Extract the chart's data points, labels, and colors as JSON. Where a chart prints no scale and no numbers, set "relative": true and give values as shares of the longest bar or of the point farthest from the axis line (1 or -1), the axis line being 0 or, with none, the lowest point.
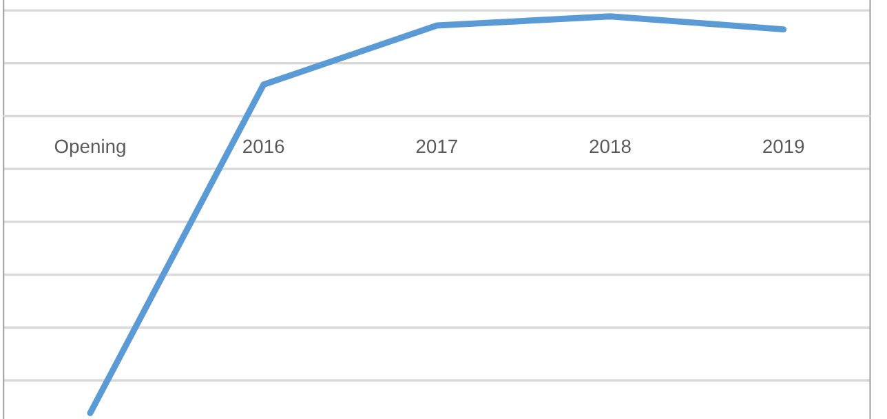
{
  "chart_data": {
    "type": "line",
    "relative": true,
    "categories": [
      "Opening",
      "2016",
      "2017",
      "2018",
      "2019"
    ],
    "series": [
      {
        "color": "#5b9bd5",
        "values": [
          -1,
          0.106,
          0.305,
          0.336,
          0.292
        ]
      }
    ],
    "grid": "y",
    "legend": false,
    "marker": "none",
    "line_style": "solid"
  }
}
